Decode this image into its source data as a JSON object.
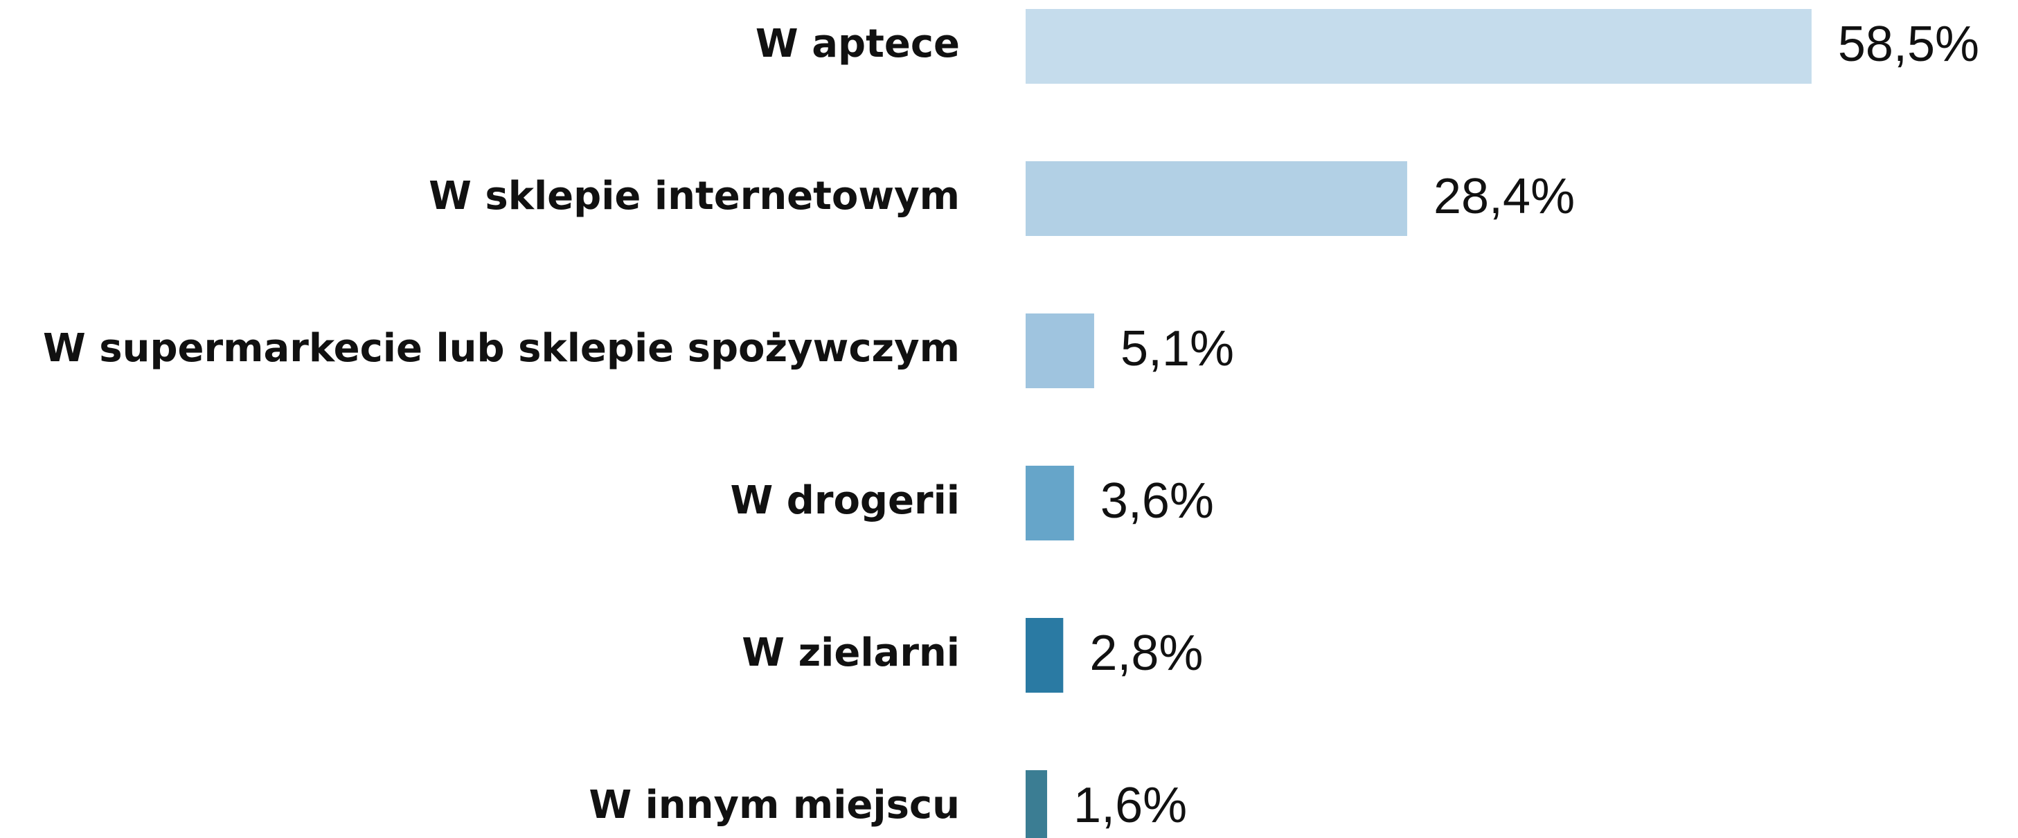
{
  "chart_data": {
    "type": "bar",
    "orientation": "horizontal",
    "categories": [
      "W aptece",
      "W sklepie internetowym",
      "W supermarkecie lub sklepie spożywczym",
      "W drogerii",
      "W zielarni",
      "W innym miejscu"
    ],
    "values": [
      58.5,
      28.4,
      5.1,
      3.6,
      2.8,
      1.6
    ],
    "value_labels": [
      "58,5%",
      "28,4%",
      "5,1%",
      "3,6%",
      "2,8%",
      "1,6%"
    ],
    "colors": [
      "#c5dcec",
      "#b2d0e5",
      "#9fc4df",
      "#66a5c9",
      "#2a7aa3",
      "#3b7d93"
    ]
  }
}
